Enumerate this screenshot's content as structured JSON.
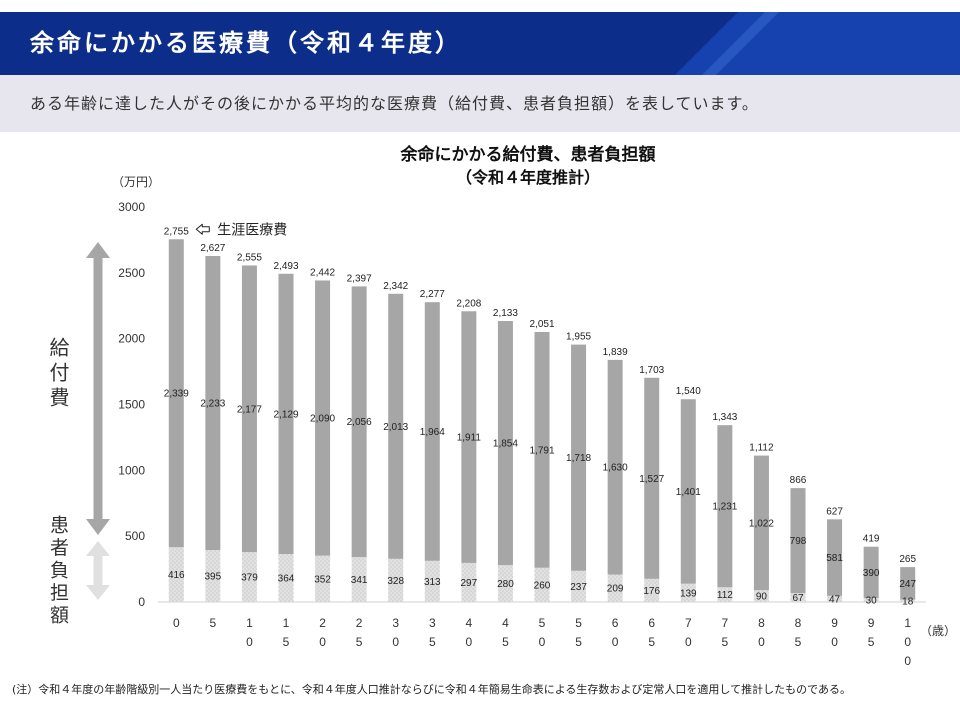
{
  "header": {
    "title": "余命にかかる医療費（令和４年度）"
  },
  "lead_text": "ある年齢に達した人がその後にかかる平均的な医療費（給付費、患者負担額）を表しています。",
  "colors": {
    "header_background": "#0c2d89",
    "lead_band_background": "#e7e5ee",
    "benefit_bar": "#a6a6a6",
    "patient_bar": "#e1e1e1",
    "benefit_arrow": "#a6a6a6",
    "patient_arrow": "#e0e0e0"
  },
  "chart_data": {
    "type": "bar",
    "stacked": true,
    "title": "余命にかかる給付費、患者負担額",
    "subtitle": "（令和４年度推計）",
    "ylabel": "（万円）",
    "xlabel": "（歳）",
    "ylim": [
      0,
      3000
    ],
    "yticks": [
      0,
      500,
      1000,
      1500,
      2000,
      2500,
      3000
    ],
    "grid": false,
    "categories": [
      "0",
      "5",
      "10",
      "15",
      "20",
      "25",
      "30",
      "35",
      "40",
      "45",
      "50",
      "55",
      "60",
      "65",
      "70",
      "75",
      "80",
      "85",
      "90",
      "95",
      "100"
    ],
    "series": [
      {
        "name": "患者負担額",
        "values": [
          416,
          395,
          379,
          364,
          352,
          341,
          328,
          313,
          297,
          280,
          260,
          237,
          209,
          176,
          139,
          112,
          90,
          67,
          47,
          30,
          18
        ]
      },
      {
        "name": "給付費",
        "values": [
          2339,
          2233,
          2177,
          2129,
          2090,
          2056,
          2013,
          1964,
          1911,
          1854,
          1791,
          1718,
          1630,
          1527,
          1401,
          1231,
          1022,
          798,
          581,
          390,
          247
        ]
      }
    ],
    "totals": [
      2755,
      2627,
      2555,
      2493,
      2442,
      2397,
      2342,
      2277,
      2208,
      2133,
      2051,
      1955,
      1839,
      1703,
      1540,
      1343,
      1112,
      866,
      627,
      419,
      265
    ],
    "annotation": "生涯医療費"
  },
  "footnote": "(注）令和４年度の年齢階級別一人当たり医療費をもとに、令和４年度人口推計ならびに令和４年簡易生命表による生存数および定常人口を適用して推計したものである。"
}
